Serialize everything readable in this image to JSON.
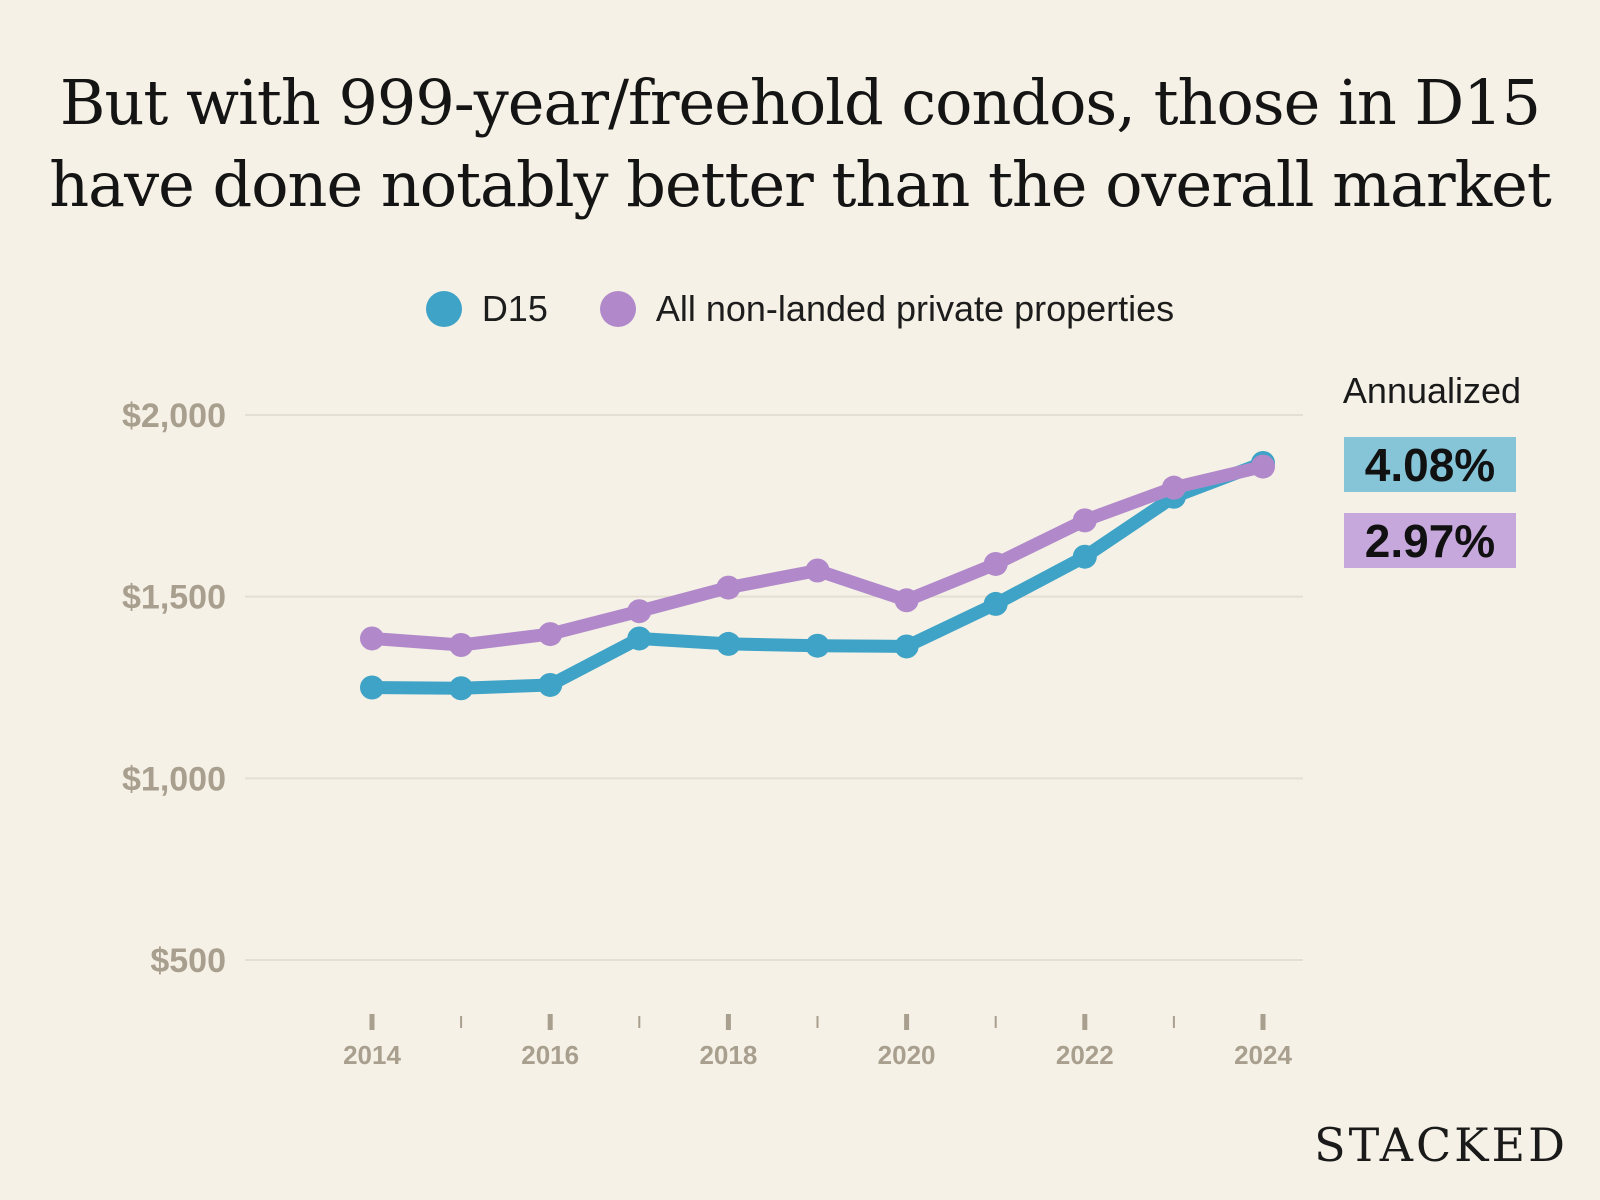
{
  "title_line1": "But with 999-year/freehold condos, those in D15",
  "title_line2": "have done notably better than the overall market",
  "brand": "STACKED",
  "annotation": {
    "label": "Annualized",
    "d15_rate": "4.08%",
    "all_rate": "2.97%"
  },
  "colors": {
    "background": "#f5f1e6",
    "d15": "#3ea3c6",
    "all": "#b189cb",
    "d15_badge": "#86c4d8",
    "all_badge": "#c6a8dd",
    "axis_text": "#a99f8f",
    "grid": "#e4dfd2"
  },
  "chart_data": {
    "type": "line",
    "title": "But with 999-year/freehold condos, those in D15 have done notably better than the overall market",
    "x": [
      2014,
      2015,
      2016,
      2017,
      2018,
      2019,
      2020,
      2021,
      2022,
      2023,
      2024
    ],
    "x_tick_labels": [
      "2014",
      "2016",
      "2018",
      "2020",
      "2022",
      "2024"
    ],
    "y_ticks": [
      500,
      1000,
      1500,
      2000
    ],
    "y_tick_labels": [
      "$500",
      "$1,000",
      "$1,500",
      "$2,000"
    ],
    "ylim": [
      500,
      2000
    ],
    "xlabel": "",
    "ylabel": "",
    "grid": true,
    "legend_position": "top-center",
    "series": [
      {
        "name": "D15",
        "color": "#3ea3c6",
        "values": [
          1250,
          1248,
          1257,
          1385,
          1370,
          1365,
          1363,
          1480,
          1610,
          1775,
          1868
        ]
      },
      {
        "name": "All non-landed private properties",
        "color": "#b189cb",
        "values": [
          1385,
          1367,
          1397,
          1460,
          1525,
          1572,
          1490,
          1590,
          1710,
          1800,
          1858
        ]
      }
    ]
  }
}
